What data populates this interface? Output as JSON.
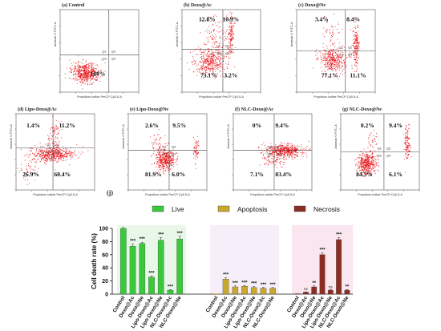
{
  "chart_data": [
    {
      "type": "scatter",
      "subtype": "flow-cytometry-quadrant",
      "title": "(a) Control",
      "xlabel": "Propidium iodide PerCP-Cy5-5-A",
      "ylabel": "Annexin V FITC-A",
      "quadrant_labels": [
        "Q1",
        "Q2",
        "Q3",
        "Q4"
      ],
      "quadrants": {
        "Q1": "",
        "Q2": "",
        "Q3": "100%",
        "Q4": ""
      }
    },
    {
      "type": "scatter",
      "subtype": "flow-cytometry-quadrant",
      "title": "(b) Doxo@Ac",
      "xlabel": "Propidium iodide PerCP-Cy5-5-A",
      "ylabel": "Annexin V FITC-A",
      "quadrant_labels": [
        "Q1",
        "Q2",
        "Q3",
        "Q4"
      ],
      "quadrants": {
        "Q1": "12.8%",
        "Q2": "10.9%",
        "Q3": "73.1%",
        "Q4": "3.2%"
      }
    },
    {
      "type": "scatter",
      "subtype": "flow-cytometry-quadrant",
      "title": "(c) Doxo@Ne",
      "xlabel": "Propidium iodide PerCP-Cy5-5-A",
      "ylabel": "Annexin V FITC-A",
      "quadrant_labels": [
        "Q1",
        "Q2",
        "Q3",
        "Q4"
      ],
      "quadrants": {
        "Q1": "3.4%",
        "Q2": "8.4%",
        "Q3": "77.1%",
        "Q4": "11.1%"
      }
    },
    {
      "type": "scatter",
      "subtype": "flow-cytometry-quadrant",
      "title": "(d) Lipo-Doxo@Ac",
      "xlabel": "Propidium iodide PerCP-Cy5-5-A",
      "ylabel": "Annexin V FITC-A",
      "quadrant_labels": [
        "Q1",
        "Q2",
        "Q3",
        "Q4"
      ],
      "quadrants": {
        "Q1": "1.4%",
        "Q2": "11.2%",
        "Q3": "26.9%",
        "Q4": "60.4%"
      }
    },
    {
      "type": "scatter",
      "subtype": "flow-cytometry-quadrant",
      "title": "(e) Lipo-Doxo@Ne",
      "xlabel": "Propidium iodide PerCP-Cy5-5-A",
      "ylabel": "Annexin V FITC-A",
      "quadrant_labels": [
        "Q1",
        "Q2",
        "Q3",
        "Q4"
      ],
      "quadrants": {
        "Q1": "2.6%",
        "Q2": "9.5%",
        "Q3": "81.9%",
        "Q4": "6.0%"
      }
    },
    {
      "type": "scatter",
      "subtype": "flow-cytometry-quadrant",
      "title": "(f) NLC-Doxo@Ac",
      "xlabel": "Propidium iodide PerCP-Cy5-5-A",
      "ylabel": "Annexin V FITC-A",
      "quadrant_labels": [
        "Q1",
        "Q2",
        "Q3",
        "Q4"
      ],
      "quadrants": {
        "Q1": "0%",
        "Q2": "9.4%",
        "Q3": "7.1%",
        "Q4": "83.4%"
      }
    },
    {
      "type": "scatter",
      "subtype": "flow-cytometry-quadrant",
      "title": "(g) NLC-Doxo@Ne",
      "xlabel": "Propidium iodide PerCP-Cy5-5-A",
      "ylabel": "Annexin V FITC-A",
      "quadrant_labels": [
        "Q1",
        "Q2",
        "Q3",
        "Q4"
      ],
      "quadrants": {
        "Q1": "0.2%",
        "Q2": "9.4%",
        "Q3": "84.3%",
        "Q4": "6.1%"
      }
    },
    {
      "type": "bar",
      "panel_label": "(j)",
      "ylabel": "Cell death rate (%)",
      "ylim": [
        0,
        100
      ],
      "yticks": [
        0,
        20,
        40,
        60,
        80,
        100
      ],
      "categories": [
        "Control",
        "Doxo@Ac",
        "Doxo@Ne",
        "Lipo-Doxo@Ac",
        "Lipo-Doxo@Ne",
        "NLC-Doxo@Ac",
        "NLC-Doxo@Ne"
      ],
      "legend_position": "top",
      "series": [
        {
          "name": "Live",
          "color": "#3ac93a",
          "values": [
            100,
            73,
            77,
            26,
            82,
            6,
            84
          ],
          "errors": [
            1.5,
            3,
            2,
            1.5,
            4,
            1,
            4
          ],
          "significance": [
            "",
            "***",
            "***",
            "***",
            "***",
            "***",
            "***"
          ]
        },
        {
          "name": "Apoptosis",
          "color": "#c9a92c",
          "values": [
            0,
            23,
            11,
            12,
            10,
            9,
            9
          ],
          "errors": [
            0,
            2,
            1.5,
            1,
            1.5,
            1,
            1
          ],
          "significance": [
            "",
            "***",
            "***",
            "***",
            "***",
            "***",
            "***"
          ]
        },
        {
          "name": "Necrosis",
          "color": "#8b2d22",
          "values": [
            0,
            3,
            11,
            60,
            6,
            83,
            6
          ],
          "errors": [
            0,
            0.5,
            1.5,
            3,
            1,
            3,
            1
          ],
          "significance": [
            "",
            "ns",
            "**",
            "***",
            "ns",
            "***",
            "**"
          ]
        }
      ]
    }
  ]
}
